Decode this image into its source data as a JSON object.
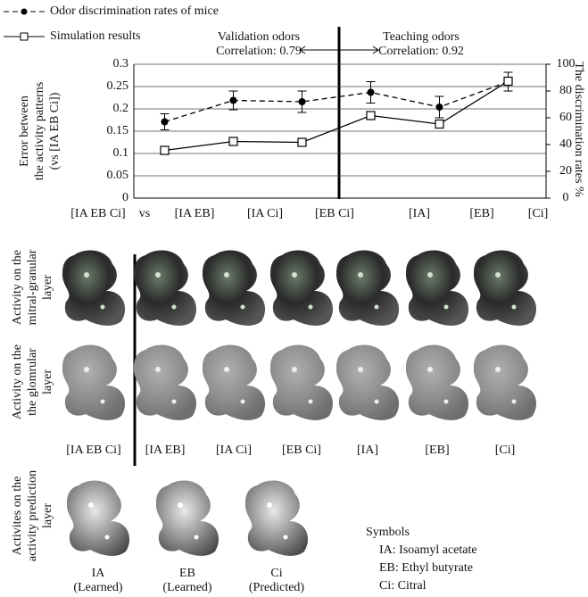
{
  "chart_data": {
    "type": "line",
    "categories": [
      "[IA EB]",
      "[IA Ci]",
      "[EB Ci]",
      "[IA]",
      "[EB]",
      "[Ci]"
    ],
    "reference_label": "[IA EB Ci]",
    "vs": "vs",
    "series": [
      {
        "name": "Odor discrimination rates of mice",
        "color": "#000000",
        "axis": "y2",
        "dashed": true,
        "marker": "dot",
        "values": [
          57,
          73,
          72,
          79,
          68,
          87
        ],
        "errors": [
          6,
          7,
          8,
          8,
          8,
          7
        ]
      },
      {
        "name": "Simulation results",
        "color": "#000000",
        "dashed": false,
        "marker": "square",
        "values": [
          0.107,
          0.127,
          0.125,
          0.185,
          0.166,
          0.262
        ]
      }
    ],
    "ylim": [
      0,
      0.3
    ],
    "yticks": [
      0,
      0.05,
      0.1,
      0.15,
      0.2,
      0.25,
      0.3
    ],
    "y2lim": [
      0,
      100
    ],
    "y2ticks": [
      0,
      20,
      40,
      60,
      80,
      100
    ],
    "ylabel": [
      "Error between",
      "the activity patterns",
      "(vs [IA EB Ci])"
    ],
    "y2label": "The discrimination rates %",
    "annotations": [
      [
        "Validation odors",
        "Correlation: 0.79"
      ],
      [
        "Teaching odors",
        "Correlation: 0.92"
      ]
    ],
    "grid": true
  },
  "rows": [
    {
      "lines": [
        "Activity on the",
        "mitral-granular",
        "layer"
      ]
    },
    {
      "lines": [
        "Activity on the",
        "the glomrular",
        "layer"
      ]
    },
    {
      "lines": [
        "Activites on the",
        "activity prediction",
        "layer"
      ]
    }
  ],
  "column_labels": [
    "[IA EB Ci]",
    "[IA EB]",
    "[IA Ci]",
    "[EB Ci]",
    "[IA]",
    "[EB]",
    "[Ci]"
  ],
  "prediction_labels": [
    [
      "IA",
      "(Learned)"
    ],
    [
      "EB",
      "(Learned)"
    ],
    [
      "Ci",
      "(Predicted)"
    ]
  ],
  "symbols": {
    "title": "Symbols",
    "items": [
      "IA:  Isoamyl  acetate",
      "EB: Ethyl butyrate",
      "Ci:  Citral"
    ]
  }
}
